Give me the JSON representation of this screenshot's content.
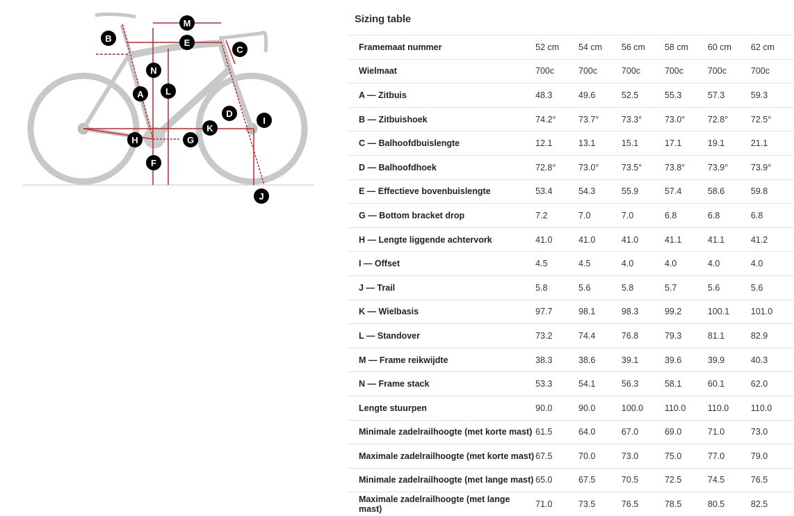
{
  "diagram": {
    "markers": [
      "M",
      "B",
      "E",
      "C",
      "N",
      "L",
      "A",
      "D",
      "I",
      "K",
      "H",
      "G",
      "F",
      "J"
    ],
    "accent_color": "#c1272d"
  },
  "sizing": {
    "title": "Sizing table",
    "rows": [
      {
        "label": "Framemaat nummer",
        "values": [
          "52 cm",
          "54 cm",
          "56 cm",
          "58 cm",
          "60 cm",
          "62 cm"
        ]
      },
      {
        "label": "Wielmaat",
        "values": [
          "700c",
          "700c",
          "700c",
          "700c",
          "700c",
          "700c"
        ]
      },
      {
        "label": "A — Zitbuis",
        "values": [
          "48.3",
          "49.6",
          "52.5",
          "55.3",
          "57.3",
          "59.3"
        ]
      },
      {
        "label": "B — Zitbuishoek",
        "values": [
          "74.2°",
          "73.7°",
          "73.3°",
          "73.0°",
          "72.8°",
          "72.5°"
        ]
      },
      {
        "label": "C — Balhoofdbuislengte",
        "values": [
          "12.1",
          "13.1",
          "15.1",
          "17.1",
          "19.1",
          "21.1"
        ]
      },
      {
        "label": "D — Balhoofdhoek",
        "values": [
          "72.8°",
          "73.0°",
          "73.5°",
          "73.8°",
          "73.9°",
          "73.9°"
        ]
      },
      {
        "label": "E — Effectieve bovenbuislengte",
        "values": [
          "53.4",
          "54.3",
          "55.9",
          "57.4",
          "58.6",
          "59.8"
        ]
      },
      {
        "label": "G — Bottom bracket drop",
        "values": [
          "7.2",
          "7.0",
          "7.0",
          "6.8",
          "6.8",
          "6.8"
        ]
      },
      {
        "label": "H — Lengte liggende achtervork",
        "values": [
          "41.0",
          "41.0",
          "41.0",
          "41.1",
          "41.1",
          "41.2"
        ]
      },
      {
        "label": "I — Offset",
        "values": [
          "4.5",
          "4.5",
          "4.0",
          "4.0",
          "4.0",
          "4.0"
        ]
      },
      {
        "label": "J — Trail",
        "values": [
          "5.8",
          "5.6",
          "5.8",
          "5.7",
          "5.6",
          "5.6"
        ]
      },
      {
        "label": "K — Wielbasis",
        "values": [
          "97.7",
          "98.1",
          "98.3",
          "99.2",
          "100.1",
          "101.0"
        ]
      },
      {
        "label": "L — Standover",
        "values": [
          "73.2",
          "74.4",
          "76.8",
          "79.3",
          "81.1",
          "82.9"
        ]
      },
      {
        "label": "M — Frame reikwijdte",
        "values": [
          "38.3",
          "38.6",
          "39.1",
          "39.6",
          "39.9",
          "40.3"
        ]
      },
      {
        "label": "N — Frame stack",
        "values": [
          "53.3",
          "54.1",
          "56.3",
          "58.1",
          "60.1",
          "62.0"
        ]
      },
      {
        "label": "Lengte stuurpen",
        "values": [
          "90.0",
          "90.0",
          "100.0",
          "110.0",
          "110.0",
          "110.0"
        ]
      },
      {
        "label": "Minimale zadelrailhoogte (met korte mast)",
        "values": [
          "61.5",
          "64.0",
          "67.0",
          "69.0",
          "71.0",
          "73.0"
        ]
      },
      {
        "label": "Maximale zadelrailhoogte (met korte mast)",
        "values": [
          "67.5",
          "70.0",
          "73.0",
          "75.0",
          "77.0",
          "79.0"
        ]
      },
      {
        "label": "Minimale zadelrailhoogte (met lange mast)",
        "values": [
          "65.0",
          "67.5",
          "70.5",
          "72.5",
          "74.5",
          "76.5"
        ]
      },
      {
        "label": "Maximale zadelrailhoogte (met lange mast)",
        "values": [
          "71.0",
          "73.5",
          "76.5",
          "78.5",
          "80.5",
          "82.5"
        ]
      }
    ]
  }
}
